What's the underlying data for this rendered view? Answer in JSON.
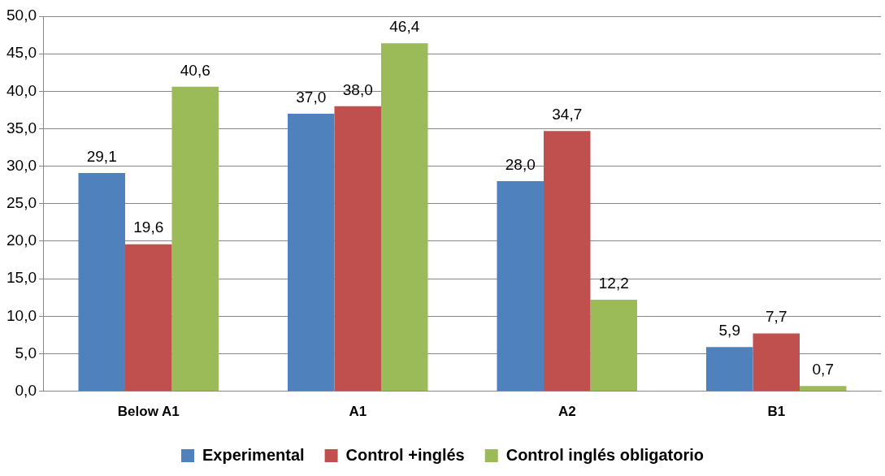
{
  "chart_data": {
    "type": "bar",
    "categories": [
      "Below A1",
      "A1",
      "A2",
      "B1"
    ],
    "series": [
      {
        "name": "Experimental",
        "color": "#4f81bd",
        "values": [
          29.1,
          37.0,
          28.0,
          5.9
        ],
        "value_labels": [
          "29,1",
          "37,0",
          "28,0",
          "5,9"
        ]
      },
      {
        "name": "Control +inglés",
        "color": "#c0504d",
        "values": [
          19.6,
          38.0,
          34.7,
          7.7
        ],
        "value_labels": [
          "19,6",
          "38,0",
          "34,7",
          "7,7"
        ]
      },
      {
        "name": "Control inglés obligatorio",
        "color": "#9bbb59",
        "values": [
          40.6,
          46.4,
          12.2,
          0.7
        ],
        "value_labels": [
          "40,6",
          "46,4",
          "12,2",
          "0,7"
        ]
      }
    ],
    "ylim": [
      0,
      50
    ],
    "yticks": [
      {
        "value": 0,
        "label": "0,0"
      },
      {
        "value": 5,
        "label": "5,0"
      },
      {
        "value": 10,
        "label": "10,0"
      },
      {
        "value": 15,
        "label": "15,0"
      },
      {
        "value": 20,
        "label": "20,0"
      },
      {
        "value": 25,
        "label": "25,0"
      },
      {
        "value": 30,
        "label": "30,0"
      },
      {
        "value": 35,
        "label": "35,0"
      },
      {
        "value": 40,
        "label": "40,0"
      },
      {
        "value": 45,
        "label": "45,0"
      },
      {
        "value": 50,
        "label": "50,0"
      }
    ],
    "grid": "y",
    "legend": "bottom"
  }
}
